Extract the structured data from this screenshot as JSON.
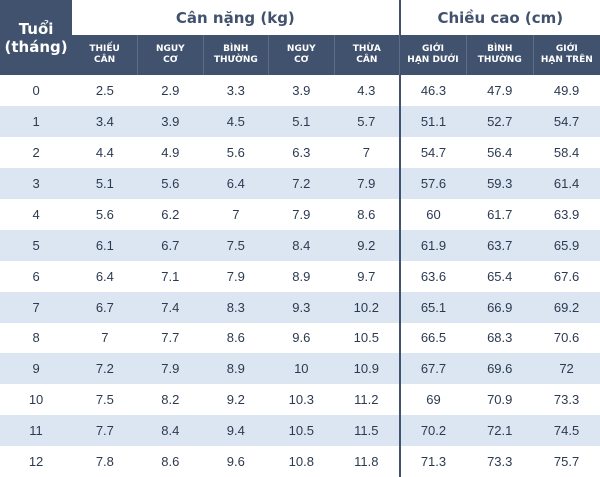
{
  "header": {
    "age_label": [
      "Tuổi",
      "(tháng)"
    ],
    "weight_group": "Cân nặng (kg)",
    "height_group": "Chiều cao (cm)",
    "weight_cols": [
      [
        "THIẾU",
        "CÂN"
      ],
      [
        "NGUY",
        "CƠ"
      ],
      [
        "BÌNH",
        "THƯỜNG"
      ],
      [
        "NGUY",
        "CƠ"
      ],
      [
        "THỪA",
        "CÂN"
      ]
    ],
    "height_cols": [
      [
        "GIỚI",
        "HẠN DƯỚI"
      ],
      [
        "BÌNH",
        "THƯỜNG"
      ],
      [
        "GIỚI",
        "HẠN TRÊN"
      ]
    ]
  },
  "rows": [
    [
      "0",
      "2.5",
      "2.9",
      "3.3",
      "3.9",
      "4.3",
      "46.3",
      "47.9",
      "49.9"
    ],
    [
      "1",
      "3.4",
      "3.9",
      "4.5",
      "5.1",
      "5.7",
      "51.1",
      "52.7",
      "54.7"
    ],
    [
      "2",
      "4.4",
      "4.9",
      "5.6",
      "6.3",
      "7",
      "54.7",
      "56.4",
      "58.4"
    ],
    [
      "3",
      "5.1",
      "5.6",
      "6.4",
      "7.2",
      "7.9",
      "57.6",
      "59.3",
      "61.4"
    ],
    [
      "4",
      "5.6",
      "6.2",
      "7",
      "7.9",
      "8.6",
      "60",
      "61.7",
      "63.9"
    ],
    [
      "5",
      "6.1",
      "6.7",
      "7.5",
      "8.4",
      "9.2",
      "61.9",
      "63.7",
      "65.9"
    ],
    [
      "6",
      "6.4",
      "7.1",
      "7.9",
      "8.9",
      "9.7",
      "63.6",
      "65.4",
      "67.6"
    ],
    [
      "7",
      "6.7",
      "7.4",
      "8.3",
      "9.3",
      "10.2",
      "65.1",
      "66.9",
      "69.2"
    ],
    [
      "8",
      "7",
      "7.7",
      "8.6",
      "9.6",
      "10.5",
      "66.5",
      "68.3",
      "70.6"
    ],
    [
      "9",
      "7.2",
      "7.9",
      "8.9",
      "10",
      "10.9",
      "67.7",
      "69.6",
      "72"
    ],
    [
      "10",
      "7.5",
      "8.2",
      "9.2",
      "10.3",
      "11.2",
      "69",
      "70.9",
      "73.3"
    ],
    [
      "11",
      "7.7",
      "8.4",
      "9.4",
      "10.5",
      "11.5",
      "70.2",
      "72.1",
      "74.5"
    ],
    [
      "12",
      "7.8",
      "8.6",
      "9.6",
      "10.8",
      "11.8",
      "71.3",
      "73.3",
      "75.7"
    ]
  ],
  "colors": {
    "header_bg": "#41526e",
    "header_text": "#ffffff",
    "group_text": "#41526e",
    "row_shade": "#dbe6f2",
    "cell_text": "#2c3a50"
  }
}
